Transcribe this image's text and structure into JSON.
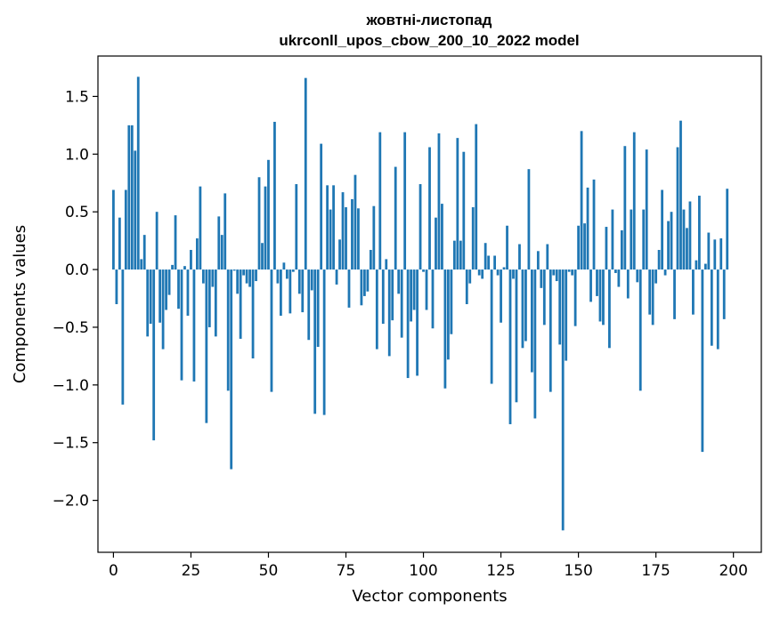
{
  "chart_data": {
    "type": "bar",
    "title_line1": "жовтні-листопад",
    "title_line2": "ukrconll_upos_cbow_200_10_2022 model",
    "xlabel": "Vector components",
    "ylabel": "Components values",
    "xlim": [
      -5,
      209
    ],
    "ylim": [
      -2.45,
      1.85
    ],
    "xticks": [
      0,
      25,
      50,
      75,
      100,
      125,
      150,
      175,
      200
    ],
    "yticks": [
      -2.0,
      -1.5,
      -1.0,
      -0.5,
      0.0,
      0.5,
      1.0,
      1.5
    ],
    "ytick_labels": [
      "−2.0",
      "−1.5",
      "−1.0",
      "−0.5",
      "0.0",
      "0.5",
      "1.0",
      "1.5"
    ],
    "xtick_labels": [
      "0",
      "25",
      "50",
      "75",
      "100",
      "125",
      "150",
      "175",
      "200"
    ],
    "bar_color": "#1f77b4",
    "values": [
      0.69,
      -0.3,
      0.45,
      -1.17,
      0.69,
      1.25,
      1.25,
      1.03,
      1.67,
      0.09,
      0.3,
      -0.58,
      -0.47,
      -1.48,
      0.5,
      -0.46,
      -0.69,
      -0.35,
      -0.22,
      0.04,
      0.47,
      -0.34,
      -0.96,
      0.03,
      -0.4,
      0.17,
      -0.97,
      0.27,
      0.72,
      -0.12,
      -1.33,
      -0.5,
      -0.15,
      -0.58,
      0.46,
      0.3,
      0.66,
      -1.05,
      -1.73,
      -0.01,
      -0.21,
      -0.6,
      -0.05,
      -0.12,
      -0.15,
      -0.77,
      -0.1,
      0.8,
      0.23,
      0.72,
      0.95,
      -1.06,
      1.28,
      -0.12,
      -0.4,
      0.06,
      -0.08,
      -0.38,
      -0.02,
      0.74,
      -0.21,
      -0.37,
      1.66,
      -0.61,
      -0.18,
      -1.25,
      -0.67,
      1.09,
      -1.26,
      0.73,
      0.52,
      0.73,
      -0.13,
      0.26,
      0.67,
      0.54,
      -0.33,
      0.61,
      0.82,
      0.53,
      -0.31,
      -0.23,
      -0.19,
      0.17,
      0.55,
      -0.69,
      1.19,
      -0.47,
      0.09,
      -0.75,
      -0.44,
      0.89,
      -0.21,
      -0.59,
      1.19,
      -0.94,
      -0.45,
      -0.35,
      -0.92,
      0.74,
      -0.02,
      -0.35,
      1.06,
      -0.51,
      0.45,
      1.18,
      0.57,
      -1.03,
      -0.78,
      -0.56,
      0.25,
      1.14,
      0.25,
      1.02,
      -0.3,
      -0.12,
      0.54,
      1.26,
      -0.05,
      -0.08,
      0.23,
      0.12,
      -0.99,
      0.12,
      -0.05,
      -0.46,
      0.02,
      0.38,
      -1.34,
      -0.08,
      -1.15,
      0.22,
      -0.68,
      -0.62,
      0.87,
      -0.89,
      -1.29,
      0.16,
      -0.16,
      -0.48,
      0.22,
      -1.06,
      -0.05,
      -0.1,
      -0.65,
      -2.26,
      -0.79,
      -0.02,
      -0.05,
      -0.49,
      0.38,
      1.2,
      0.4,
      0.71,
      -0.28,
      0.78,
      -0.23,
      -0.45,
      -0.48,
      0.37,
      -0.68,
      0.52,
      -0.03,
      -0.15,
      0.34,
      1.07,
      -0.25,
      0.52,
      1.19,
      -0.11,
      -1.05,
      0.52,
      1.04,
      -0.39,
      -0.48,
      -0.12,
      0.17,
      0.69,
      -0.05,
      0.42,
      0.5,
      -0.43,
      1.06,
      1.29,
      0.52,
      0.36,
      0.59,
      -0.39,
      0.08,
      0.64,
      -1.58,
      0.05,
      0.32,
      -0.66,
      0.26,
      -0.69,
      0.27,
      -0.43,
      0.7
    ]
  }
}
